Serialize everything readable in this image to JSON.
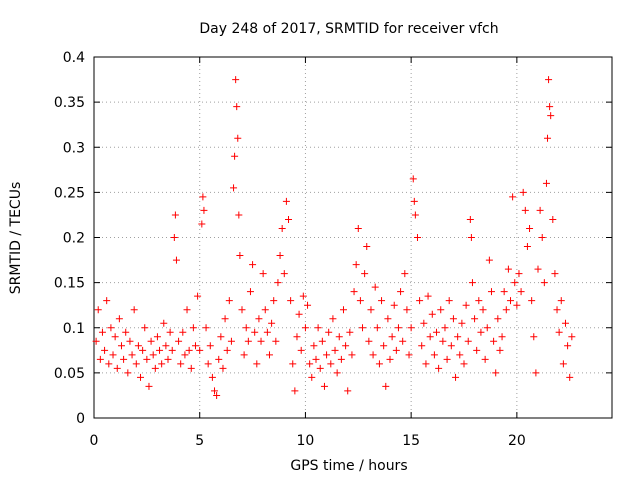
{
  "chart_data": {
    "type": "scatter",
    "title": "Day 248 of 2017, SRMTID for receiver vfch",
    "xlabel": "GPS time / hours",
    "ylabel": "SRMTID / TECUs",
    "xlim": [
      0,
      24.5
    ],
    "ylim": [
      0,
      0.4
    ],
    "xticks": [
      0,
      5,
      10,
      15,
      20
    ],
    "xtick_labels": [
      "0",
      "5",
      "10",
      "15",
      "20"
    ],
    "yticks": [
      0,
      0.05,
      0.1,
      0.15,
      0.2,
      0.25,
      0.3,
      0.35,
      0.4
    ],
    "ytick_labels": [
      "0",
      "0.05",
      "0.1",
      "0.15",
      "0.2",
      "0.25",
      "0.3",
      "0.35",
      "0.4"
    ],
    "grid": true,
    "marker": "plus",
    "color": "#ff0000",
    "series": [
      {
        "name": "SRMTID",
        "points": [
          [
            0.1,
            0.085
          ],
          [
            0.2,
            0.12
          ],
          [
            0.3,
            0.065
          ],
          [
            0.4,
            0.095
          ],
          [
            0.5,
            0.075
          ],
          [
            0.6,
            0.13
          ],
          [
            0.7,
            0.06
          ],
          [
            0.8,
            0.1
          ],
          [
            0.9,
            0.07
          ],
          [
            1.0,
            0.09
          ],
          [
            1.1,
            0.055
          ],
          [
            1.2,
            0.11
          ],
          [
            1.3,
            0.08
          ],
          [
            1.4,
            0.065
          ],
          [
            1.5,
            0.095
          ],
          [
            1.6,
            0.05
          ],
          [
            1.7,
            0.085
          ],
          [
            1.8,
            0.07
          ],
          [
            1.9,
            0.12
          ],
          [
            2.0,
            0.06
          ],
          [
            2.1,
            0.08
          ],
          [
            2.2,
            0.045
          ],
          [
            2.3,
            0.075
          ],
          [
            2.4,
            0.1
          ],
          [
            2.5,
            0.065
          ],
          [
            2.6,
            0.035
          ],
          [
            2.7,
            0.085
          ],
          [
            2.8,
            0.07
          ],
          [
            2.9,
            0.055
          ],
          [
            3.0,
            0.09
          ],
          [
            3.1,
            0.075
          ],
          [
            3.2,
            0.06
          ],
          [
            3.3,
            0.105
          ],
          [
            3.4,
            0.08
          ],
          [
            3.5,
            0.065
          ],
          [
            3.6,
            0.095
          ],
          [
            3.7,
            0.075
          ],
          [
            3.8,
            0.2
          ],
          [
            3.85,
            0.225
          ],
          [
            3.9,
            0.175
          ],
          [
            4.0,
            0.085
          ],
          [
            4.1,
            0.06
          ],
          [
            4.2,
            0.095
          ],
          [
            4.3,
            0.07
          ],
          [
            4.4,
            0.12
          ],
          [
            4.5,
            0.075
          ],
          [
            4.6,
            0.055
          ],
          [
            4.7,
            0.1
          ],
          [
            4.8,
            0.08
          ],
          [
            4.9,
            0.135
          ],
          [
            5.0,
            0.075
          ],
          [
            5.1,
            0.215
          ],
          [
            5.15,
            0.245
          ],
          [
            5.2,
            0.23
          ],
          [
            5.3,
            0.1
          ],
          [
            5.4,
            0.06
          ],
          [
            5.5,
            0.08
          ],
          [
            5.6,
            0.045
          ],
          [
            5.7,
            0.03
          ],
          [
            5.8,
            0.025
          ],
          [
            5.9,
            0.065
          ],
          [
            6.0,
            0.09
          ],
          [
            6.1,
            0.055
          ],
          [
            6.2,
            0.11
          ],
          [
            6.3,
            0.075
          ],
          [
            6.4,
            0.13
          ],
          [
            6.5,
            0.085
          ],
          [
            6.6,
            0.255
          ],
          [
            6.65,
            0.29
          ],
          [
            6.7,
            0.375
          ],
          [
            6.75,
            0.345
          ],
          [
            6.8,
            0.31
          ],
          [
            6.85,
            0.225
          ],
          [
            6.9,
            0.18
          ],
          [
            7.0,
            0.12
          ],
          [
            7.1,
            0.07
          ],
          [
            7.2,
            0.1
          ],
          [
            7.3,
            0.085
          ],
          [
            7.4,
            0.14
          ],
          [
            7.5,
            0.17
          ],
          [
            7.6,
            0.095
          ],
          [
            7.7,
            0.06
          ],
          [
            7.8,
            0.11
          ],
          [
            7.9,
            0.085
          ],
          [
            8.0,
            0.16
          ],
          [
            8.1,
            0.12
          ],
          [
            8.2,
            0.095
          ],
          [
            8.3,
            0.07
          ],
          [
            8.4,
            0.105
          ],
          [
            8.5,
            0.13
          ],
          [
            8.6,
            0.085
          ],
          [
            8.7,
            0.15
          ],
          [
            8.8,
            0.18
          ],
          [
            8.9,
            0.21
          ],
          [
            9.0,
            0.16
          ],
          [
            9.1,
            0.24
          ],
          [
            9.2,
            0.22
          ],
          [
            9.3,
            0.13
          ],
          [
            9.4,
            0.06
          ],
          [
            9.5,
            0.03
          ],
          [
            9.6,
            0.09
          ],
          [
            9.7,
            0.115
          ],
          [
            9.8,
            0.075
          ],
          [
            9.9,
            0.135
          ],
          [
            10.0,
            0.1
          ],
          [
            10.1,
            0.125
          ],
          [
            10.2,
            0.06
          ],
          [
            10.3,
            0.045
          ],
          [
            10.4,
            0.08
          ],
          [
            10.5,
            0.065
          ],
          [
            10.6,
            0.1
          ],
          [
            10.7,
            0.055
          ],
          [
            10.8,
            0.085
          ],
          [
            10.9,
            0.035
          ],
          [
            11.0,
            0.07
          ],
          [
            11.1,
            0.095
          ],
          [
            11.2,
            0.06
          ],
          [
            11.3,
            0.11
          ],
          [
            11.4,
            0.075
          ],
          [
            11.5,
            0.05
          ],
          [
            11.6,
            0.09
          ],
          [
            11.7,
            0.065
          ],
          [
            11.8,
            0.12
          ],
          [
            11.9,
            0.08
          ],
          [
            12.0,
            0.03
          ],
          [
            12.1,
            0.095
          ],
          [
            12.2,
            0.07
          ],
          [
            12.3,
            0.14
          ],
          [
            12.4,
            0.17
          ],
          [
            12.5,
            0.21
          ],
          [
            12.6,
            0.13
          ],
          [
            12.7,
            0.1
          ],
          [
            12.8,
            0.16
          ],
          [
            12.9,
            0.19
          ],
          [
            13.0,
            0.085
          ],
          [
            13.1,
            0.12
          ],
          [
            13.2,
            0.07
          ],
          [
            13.3,
            0.145
          ],
          [
            13.4,
            0.1
          ],
          [
            13.5,
            0.06
          ],
          [
            13.6,
            0.13
          ],
          [
            13.7,
            0.08
          ],
          [
            13.8,
            0.035
          ],
          [
            13.9,
            0.11
          ],
          [
            14.0,
            0.065
          ],
          [
            14.1,
            0.09
          ],
          [
            14.2,
            0.125
          ],
          [
            14.3,
            0.075
          ],
          [
            14.4,
            0.1
          ],
          [
            14.5,
            0.14
          ],
          [
            14.6,
            0.085
          ],
          [
            14.7,
            0.16
          ],
          [
            14.8,
            0.12
          ],
          [
            14.9,
            0.07
          ],
          [
            15.0,
            0.1
          ],
          [
            15.1,
            0.265
          ],
          [
            15.15,
            0.24
          ],
          [
            15.2,
            0.225
          ],
          [
            15.3,
            0.2
          ],
          [
            15.4,
            0.13
          ],
          [
            15.5,
            0.08
          ],
          [
            15.6,
            0.105
          ],
          [
            15.7,
            0.06
          ],
          [
            15.8,
            0.135
          ],
          [
            15.9,
            0.09
          ],
          [
            16.0,
            0.115
          ],
          [
            16.1,
            0.07
          ],
          [
            16.2,
            0.095
          ],
          [
            16.3,
            0.055
          ],
          [
            16.4,
            0.12
          ],
          [
            16.5,
            0.085
          ],
          [
            16.6,
            0.1
          ],
          [
            16.7,
            0.065
          ],
          [
            16.8,
            0.13
          ],
          [
            16.9,
            0.08
          ],
          [
            17.0,
            0.11
          ],
          [
            17.1,
            0.045
          ],
          [
            17.2,
            0.09
          ],
          [
            17.3,
            0.07
          ],
          [
            17.4,
            0.105
          ],
          [
            17.5,
            0.06
          ],
          [
            17.6,
            0.125
          ],
          [
            17.7,
            0.085
          ],
          [
            17.8,
            0.22
          ],
          [
            17.85,
            0.2
          ],
          [
            17.9,
            0.15
          ],
          [
            18.0,
            0.11
          ],
          [
            18.1,
            0.075
          ],
          [
            18.2,
            0.13
          ],
          [
            18.3,
            0.095
          ],
          [
            18.4,
            0.12
          ],
          [
            18.5,
            0.065
          ],
          [
            18.6,
            0.1
          ],
          [
            18.7,
            0.175
          ],
          [
            18.8,
            0.14
          ],
          [
            18.9,
            0.085
          ],
          [
            19.0,
            0.05
          ],
          [
            19.1,
            0.11
          ],
          [
            19.2,
            0.075
          ],
          [
            19.3,
            0.09
          ],
          [
            19.4,
            0.14
          ],
          [
            19.5,
            0.12
          ],
          [
            19.6,
            0.165
          ],
          [
            19.7,
            0.13
          ],
          [
            19.8,
            0.245
          ],
          [
            19.9,
            0.15
          ],
          [
            20.0,
            0.125
          ],
          [
            20.1,
            0.16
          ],
          [
            20.2,
            0.14
          ],
          [
            20.3,
            0.25
          ],
          [
            20.4,
            0.23
          ],
          [
            20.5,
            0.19
          ],
          [
            20.6,
            0.21
          ],
          [
            20.7,
            0.13
          ],
          [
            20.8,
            0.09
          ],
          [
            20.9,
            0.05
          ],
          [
            21.0,
            0.165
          ],
          [
            21.1,
            0.23
          ],
          [
            21.2,
            0.2
          ],
          [
            21.3,
            0.15
          ],
          [
            21.4,
            0.26
          ],
          [
            21.45,
            0.31
          ],
          [
            21.5,
            0.375
          ],
          [
            21.55,
            0.345
          ],
          [
            21.6,
            0.335
          ],
          [
            21.7,
            0.22
          ],
          [
            21.8,
            0.16
          ],
          [
            21.9,
            0.12
          ],
          [
            22.0,
            0.095
          ],
          [
            22.1,
            0.13
          ],
          [
            22.2,
            0.06
          ],
          [
            22.3,
            0.105
          ],
          [
            22.4,
            0.08
          ],
          [
            22.5,
            0.045
          ],
          [
            22.6,
            0.09
          ]
        ]
      }
    ]
  }
}
